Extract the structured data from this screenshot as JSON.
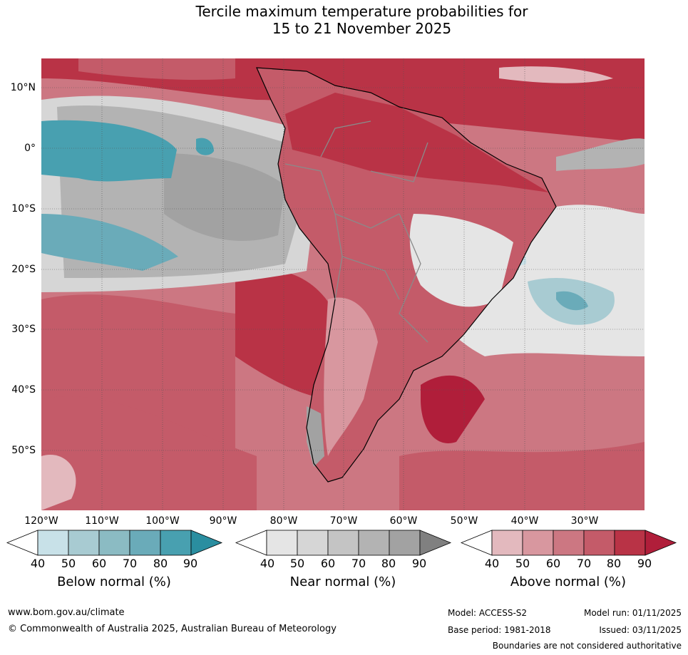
{
  "title": {
    "line1": "Tercile maximum temperature probabilities for",
    "line2": "15 to 21 November 2025"
  },
  "map": {
    "lat_labels": [
      "10°N",
      "0°",
      "10°S",
      "20°S",
      "30°S",
      "40°S",
      "50°S"
    ],
    "lon_labels": [
      "120°W",
      "110°W",
      "100°W",
      "90°W",
      "80°W",
      "70°W",
      "60°W",
      "50°W",
      "40°W",
      "30°W"
    ]
  },
  "legends": [
    {
      "id": "below",
      "title": "Below normal (%)",
      "ticks": [
        "40",
        "50",
        "60",
        "70",
        "80",
        "90"
      ],
      "colors": [
        "#ffffff",
        "#c8e1e8",
        "#a8cbd2",
        "#8bbbc3",
        "#6aabb9",
        "#48a0b0",
        "#2a8ea0"
      ]
    },
    {
      "id": "near",
      "title": "Near normal (%)",
      "ticks": [
        "40",
        "50",
        "60",
        "70",
        "80",
        "90"
      ],
      "colors": [
        "#ffffff",
        "#e5e5e5",
        "#d6d6d6",
        "#c4c4c4",
        "#b3b3b3",
        "#a2a2a2",
        "#808080"
      ]
    },
    {
      "id": "above",
      "title": "Above normal (%)",
      "ticks": [
        "40",
        "50",
        "60",
        "70",
        "80",
        "90"
      ],
      "colors": [
        "#ffffff",
        "#e3b9be",
        "#d8979f",
        "#cc7782",
        "#c45b69",
        "#b93346",
        "#b01e3a"
      ]
    }
  ],
  "footer": {
    "website": "www.bom.gov.au/climate",
    "copyright": "© Commonwealth of Australia 2025, Australian Bureau of Meteorology",
    "model": "Model: ACCESS-S2",
    "model_run": "Model run: 01/11/2025",
    "base_period": "Base period: 1981-2018",
    "issued": "Issued: 03/11/2025",
    "disclaimer": "Boundaries are not considered authoritative"
  }
}
